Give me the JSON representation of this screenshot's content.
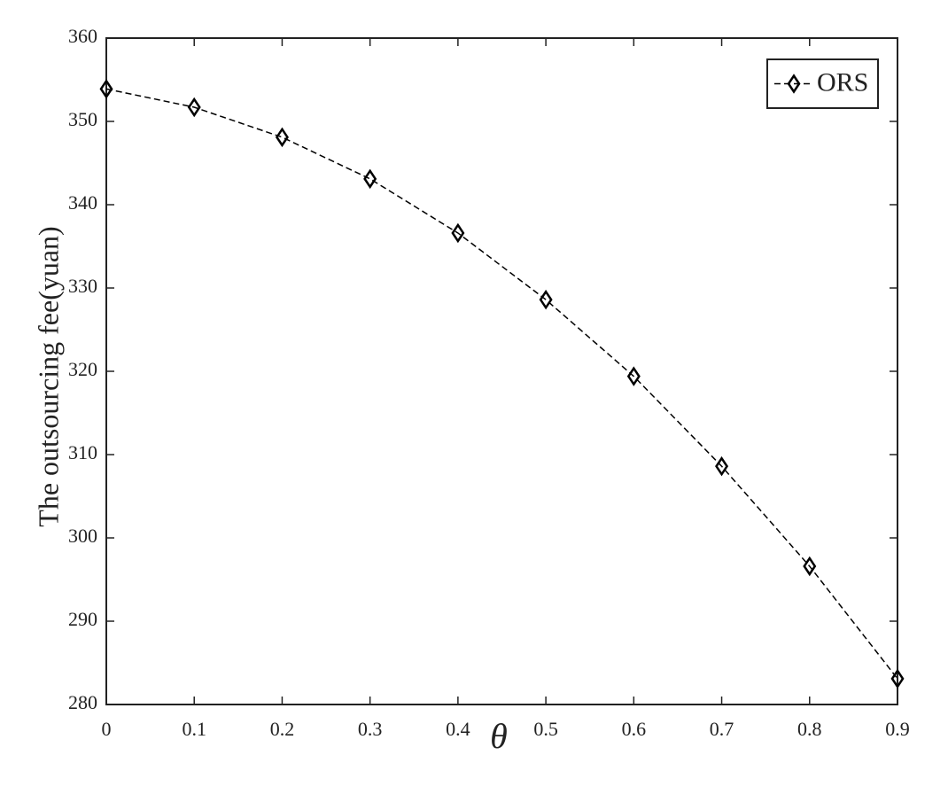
{
  "chart_data": {
    "type": "line",
    "x_label": "θ",
    "y_label": "The outsourcing fee(yuan)",
    "x": [
      0,
      0.1,
      0.2,
      0.3,
      0.4,
      0.5,
      0.6,
      0.7,
      0.8,
      0.9
    ],
    "series": [
      {
        "name": "ORS",
        "color": "#000000",
        "values": [
          353.9,
          351.7,
          348.1,
          343.1,
          336.6,
          328.6,
          319.4,
          308.6,
          296.6,
          283.1
        ]
      }
    ],
    "xlim": [
      0,
      0.9
    ],
    "xticks": [
      0,
      0.1,
      0.2,
      0.3,
      0.4,
      0.5,
      0.6,
      0.7,
      0.8,
      0.9
    ],
    "ylim": [
      280,
      360
    ],
    "yticks": [
      280,
      290,
      300,
      310,
      320,
      330,
      340,
      350,
      360
    ],
    "grid": false,
    "legend": "upper right"
  }
}
